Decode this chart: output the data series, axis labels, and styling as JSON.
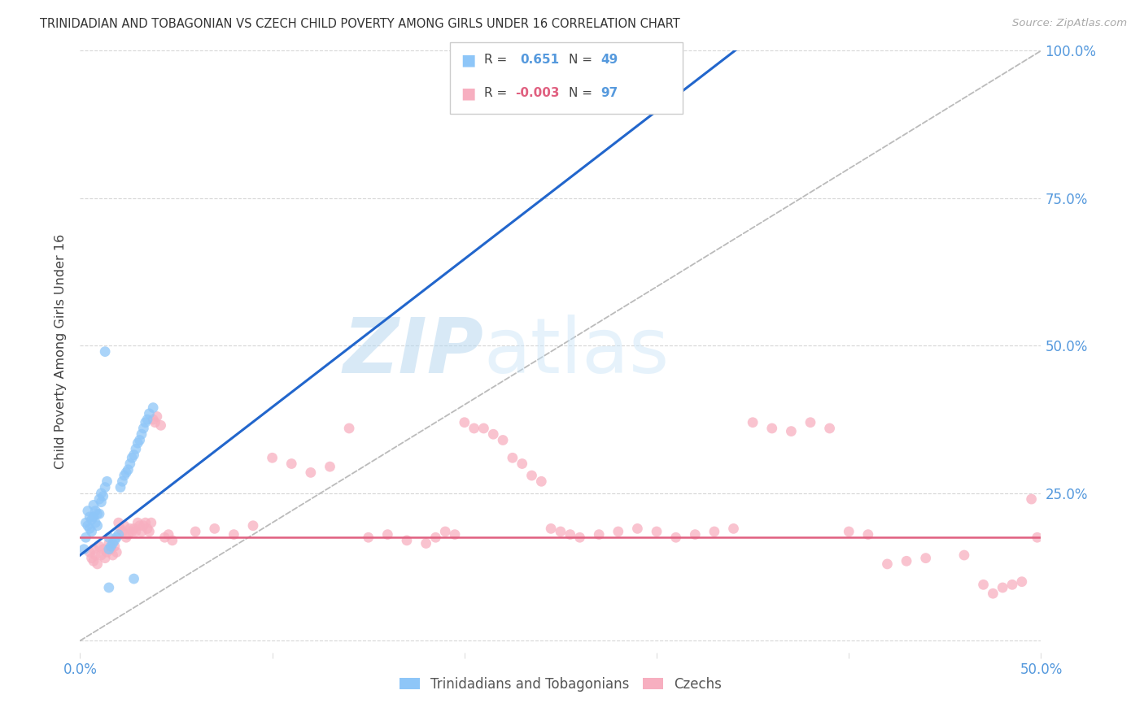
{
  "title": "TRINIDADIAN AND TOBAGONIAN VS CZECH CHILD POVERTY AMONG GIRLS UNDER 16 CORRELATION CHART",
  "source": "Source: ZipAtlas.com",
  "ylabel": "Child Poverty Among Girls Under 16",
  "xlim": [
    0.0,
    0.5
  ],
  "ylim": [
    -0.02,
    1.0
  ],
  "group1_label": "Trinidadians and Tobagonians",
  "group1_color": "#8ec6f8",
  "group1_line_color": "#2266cc",
  "group2_label": "Czechs",
  "group2_color": "#f7afc0",
  "group2_line_color": "#e06080",
  "watermark_color": "#cde8f8",
  "background_color": "#ffffff",
  "grid_color": "#cccccc",
  "title_color": "#333333",
  "axis_label_color": "#444444",
  "tick_label_color": "#5599dd",
  "source_color": "#aaaaaa",
  "diag_color": "#bbbbbb",
  "blue_trend": [
    0.0,
    0.145,
    0.5,
    1.4
  ],
  "pink_trend": [
    0.0,
    0.175,
    0.5,
    0.175
  ],
  "scatter1": [
    [
      0.002,
      0.155
    ],
    [
      0.003,
      0.175
    ],
    [
      0.003,
      0.2
    ],
    [
      0.004,
      0.195
    ],
    [
      0.004,
      0.22
    ],
    [
      0.005,
      0.19
    ],
    [
      0.005,
      0.21
    ],
    [
      0.006,
      0.205
    ],
    [
      0.006,
      0.185
    ],
    [
      0.007,
      0.21
    ],
    [
      0.007,
      0.23
    ],
    [
      0.008,
      0.22
    ],
    [
      0.008,
      0.2
    ],
    [
      0.009,
      0.215
    ],
    [
      0.009,
      0.195
    ],
    [
      0.01,
      0.215
    ],
    [
      0.01,
      0.24
    ],
    [
      0.011,
      0.235
    ],
    [
      0.011,
      0.25
    ],
    [
      0.012,
      0.245
    ],
    [
      0.013,
      0.49
    ],
    [
      0.013,
      0.26
    ],
    [
      0.014,
      0.27
    ],
    [
      0.015,
      0.175
    ],
    [
      0.015,
      0.155
    ],
    [
      0.016,
      0.16
    ],
    [
      0.017,
      0.165
    ],
    [
      0.018,
      0.17
    ],
    [
      0.019,
      0.175
    ],
    [
      0.02,
      0.18
    ],
    [
      0.021,
      0.26
    ],
    [
      0.022,
      0.27
    ],
    [
      0.023,
      0.28
    ],
    [
      0.024,
      0.285
    ],
    [
      0.025,
      0.29
    ],
    [
      0.026,
      0.3
    ],
    [
      0.027,
      0.31
    ],
    [
      0.028,
      0.315
    ],
    [
      0.029,
      0.325
    ],
    [
      0.03,
      0.335
    ],
    [
      0.031,
      0.34
    ],
    [
      0.032,
      0.35
    ],
    [
      0.033,
      0.36
    ],
    [
      0.034,
      0.37
    ],
    [
      0.035,
      0.375
    ],
    [
      0.036,
      0.385
    ],
    [
      0.038,
      0.395
    ],
    [
      0.015,
      0.09
    ],
    [
      0.028,
      0.105
    ]
  ],
  "scatter2": [
    [
      0.005,
      0.15
    ],
    [
      0.006,
      0.14
    ],
    [
      0.007,
      0.135
    ],
    [
      0.007,
      0.155
    ],
    [
      0.008,
      0.145
    ],
    [
      0.009,
      0.13
    ],
    [
      0.01,
      0.16
    ],
    [
      0.011,
      0.145
    ],
    [
      0.012,
      0.155
    ],
    [
      0.013,
      0.14
    ],
    [
      0.014,
      0.15
    ],
    [
      0.015,
      0.165
    ],
    [
      0.016,
      0.155
    ],
    [
      0.017,
      0.145
    ],
    [
      0.018,
      0.16
    ],
    [
      0.019,
      0.15
    ],
    [
      0.02,
      0.2
    ],
    [
      0.021,
      0.19
    ],
    [
      0.022,
      0.185
    ],
    [
      0.023,
      0.195
    ],
    [
      0.024,
      0.175
    ],
    [
      0.025,
      0.18
    ],
    [
      0.026,
      0.19
    ],
    [
      0.027,
      0.185
    ],
    [
      0.028,
      0.19
    ],
    [
      0.029,
      0.185
    ],
    [
      0.03,
      0.2
    ],
    [
      0.031,
      0.195
    ],
    [
      0.032,
      0.185
    ],
    [
      0.033,
      0.195
    ],
    [
      0.034,
      0.2
    ],
    [
      0.035,
      0.19
    ],
    [
      0.036,
      0.185
    ],
    [
      0.037,
      0.2
    ],
    [
      0.038,
      0.375
    ],
    [
      0.039,
      0.37
    ],
    [
      0.04,
      0.38
    ],
    [
      0.042,
      0.365
    ],
    [
      0.044,
      0.175
    ],
    [
      0.046,
      0.18
    ],
    [
      0.048,
      0.17
    ],
    [
      0.06,
      0.185
    ],
    [
      0.07,
      0.19
    ],
    [
      0.08,
      0.18
    ],
    [
      0.09,
      0.195
    ],
    [
      0.1,
      0.31
    ],
    [
      0.11,
      0.3
    ],
    [
      0.12,
      0.285
    ],
    [
      0.13,
      0.295
    ],
    [
      0.14,
      0.36
    ],
    [
      0.15,
      0.175
    ],
    [
      0.16,
      0.18
    ],
    [
      0.17,
      0.17
    ],
    [
      0.18,
      0.165
    ],
    [
      0.185,
      0.175
    ],
    [
      0.19,
      0.185
    ],
    [
      0.195,
      0.18
    ],
    [
      0.2,
      0.37
    ],
    [
      0.205,
      0.36
    ],
    [
      0.21,
      0.36
    ],
    [
      0.215,
      0.35
    ],
    [
      0.22,
      0.34
    ],
    [
      0.225,
      0.31
    ],
    [
      0.23,
      0.3
    ],
    [
      0.235,
      0.28
    ],
    [
      0.24,
      0.27
    ],
    [
      0.245,
      0.19
    ],
    [
      0.25,
      0.185
    ],
    [
      0.255,
      0.18
    ],
    [
      0.26,
      0.175
    ],
    [
      0.27,
      0.18
    ],
    [
      0.28,
      0.185
    ],
    [
      0.29,
      0.19
    ],
    [
      0.3,
      0.185
    ],
    [
      0.31,
      0.175
    ],
    [
      0.32,
      0.18
    ],
    [
      0.33,
      0.185
    ],
    [
      0.34,
      0.19
    ],
    [
      0.35,
      0.37
    ],
    [
      0.36,
      0.36
    ],
    [
      0.37,
      0.355
    ],
    [
      0.38,
      0.37
    ],
    [
      0.39,
      0.36
    ],
    [
      0.4,
      0.185
    ],
    [
      0.41,
      0.18
    ],
    [
      0.42,
      0.13
    ],
    [
      0.43,
      0.135
    ],
    [
      0.44,
      0.14
    ],
    [
      0.46,
      0.145
    ],
    [
      0.47,
      0.095
    ],
    [
      0.475,
      0.08
    ],
    [
      0.48,
      0.09
    ],
    [
      0.485,
      0.095
    ],
    [
      0.49,
      0.1
    ],
    [
      0.495,
      0.24
    ],
    [
      0.498,
      0.175
    ]
  ]
}
